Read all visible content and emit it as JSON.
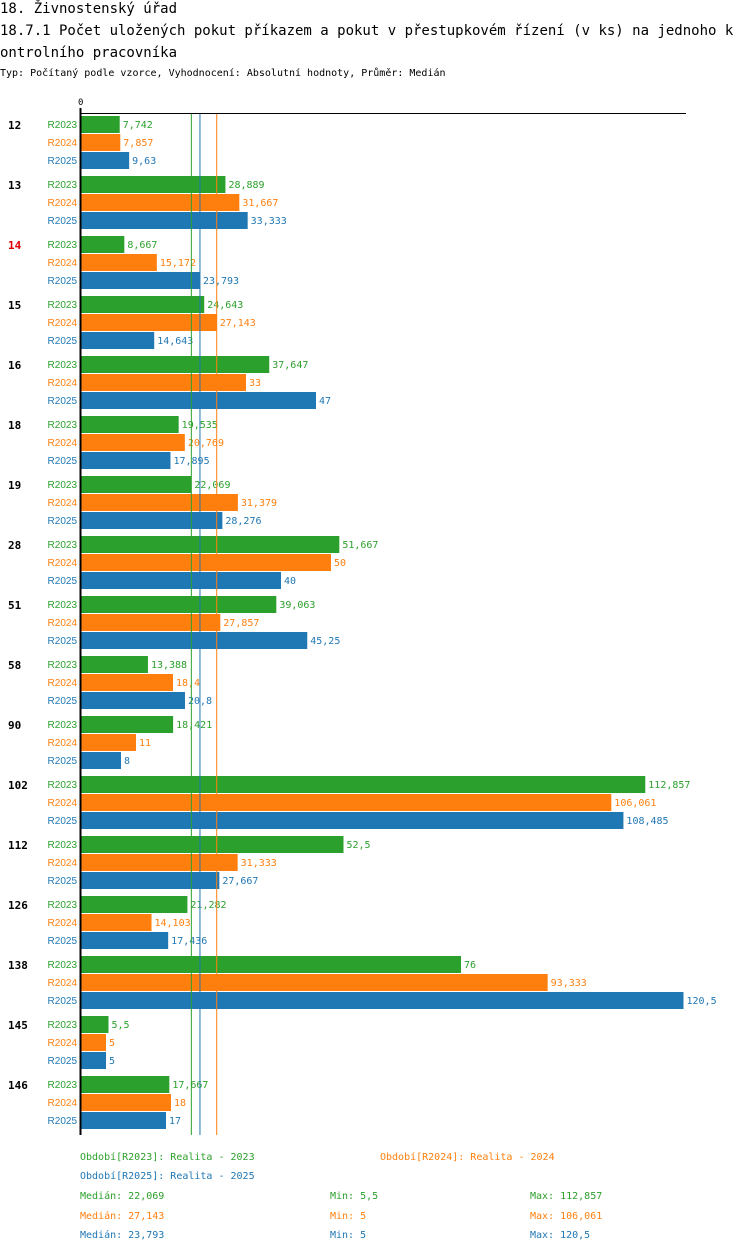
{
  "header": {
    "title": "18. Živnostenský úřad",
    "subtitle": "18.7.1 Počet uložených pokut příkazem a pokut v přestupkovém řízení (v ks) na jednoho kontrolního pracovníka",
    "description": "Typ: Počítaný podle vzorce, Vyhodnocení: Absolutní hodnoty, Průměr: Medián"
  },
  "colors": {
    "R2023": "#2ca02c",
    "R2024": "#ff7f0e",
    "R2025": "#1f77b4",
    "highlight": "#dd0000"
  },
  "chart_data": {
    "type": "bar",
    "orientation": "horizontal",
    "axis_zero_label": "0",
    "xlim": [
      0,
      120.5
    ],
    "highlight_category": "14",
    "categories": [
      "12",
      "13",
      "14",
      "15",
      "16",
      "18",
      "19",
      "28",
      "51",
      "58",
      "90",
      "102",
      "112",
      "126",
      "138",
      "145",
      "146"
    ],
    "series": [
      {
        "name": "R2023",
        "values": [
          7.742,
          28.889,
          8.667,
          24.643,
          37.647,
          19.535,
          22.069,
          51.667,
          39.063,
          13.388,
          18.421,
          112.857,
          52.5,
          21.282,
          76,
          5.5,
          17.667
        ],
        "labels": [
          "7,742",
          "28,889",
          "8,667",
          "24,643",
          "37,647",
          "19,535",
          "22,069",
          "51,667",
          "39,063",
          "13,388",
          "18,421",
          "112,857",
          "52,5",
          "21,282",
          "76",
          "5,5",
          "17,667"
        ]
      },
      {
        "name": "R2024",
        "values": [
          7.857,
          31.667,
          15.172,
          27.143,
          33,
          20.769,
          31.379,
          50,
          27.857,
          18.4,
          11,
          106.061,
          31.333,
          14.103,
          93.333,
          5,
          18
        ],
        "labels": [
          "7,857",
          "31,667",
          "15,172",
          "27,143",
          "33",
          "20,769",
          "31,379",
          "50",
          "27,857",
          "18,4",
          "11",
          "106,061",
          "31,333",
          "14,103",
          "93,333",
          "5",
          "18"
        ]
      },
      {
        "name": "R2025",
        "values": [
          9.63,
          33.333,
          23.793,
          14.643,
          47,
          17.895,
          28.276,
          40,
          45.25,
          20.8,
          8,
          108.485,
          27.667,
          17.436,
          120.5,
          5,
          17
        ],
        "labels": [
          "9,63",
          "33,333",
          "23,793",
          "14,643",
          "47",
          "17,895",
          "28,276",
          "40",
          "45,25",
          "20,8",
          "8",
          "108,485",
          "27,667",
          "17,436",
          "120,5",
          "5",
          "17"
        ]
      }
    ],
    "medians": [
      22.069,
      27.143,
      23.793
    ]
  },
  "legend": {
    "periods": [
      "Období[R2023]: Realita - 2023",
      "Období[R2024]: Realita - 2024",
      "Období[R2025]: Realita - 2025"
    ],
    "stats": [
      {
        "median": "Medián: 22,069",
        "min": "Min: 5,5",
        "max": "Max: 112,857"
      },
      {
        "median": "Medián: 27,143",
        "min": "Min: 5",
        "max": "Max: 106,061"
      },
      {
        "median": "Medián: 23,793",
        "min": "Min: 5",
        "max": "Max: 120,5"
      }
    ]
  }
}
